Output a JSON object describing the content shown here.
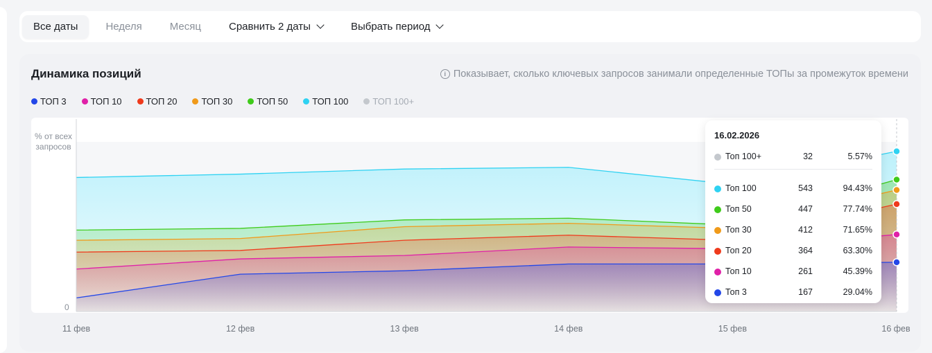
{
  "tabs": [
    {
      "label": "Все даты",
      "active": true
    },
    {
      "label": "Неделя"
    },
    {
      "label": "Месяц"
    },
    {
      "label": "Сравнить 2 даты",
      "dropdown": true
    },
    {
      "label": "Выбрать период",
      "dropdown": true
    }
  ],
  "card": {
    "title": "Динамика позиций",
    "info": "Показывает, сколько ключевых запросов занимали определенные ТОПы за промежуток времени"
  },
  "legend": [
    {
      "label": "ТОП 3",
      "color": "#2347e8"
    },
    {
      "label": "ТОП 10",
      "color": "#e020a8"
    },
    {
      "label": "ТОП 20",
      "color": "#ef3a1c"
    },
    {
      "label": "ТОП 30",
      "color": "#f09a1a"
    },
    {
      "label": "ТОП 50",
      "color": "#3fcb1a"
    },
    {
      "label": "ТОП 100",
      "color": "#2fd2f2"
    },
    {
      "label": "ТОП 100+",
      "color": "#c4c8cd",
      "disabled": true
    }
  ],
  "chart_data": {
    "type": "area",
    "ylabel": "% от всех запросов",
    "ymin_label": "0",
    "ylim": [
      0,
      100
    ],
    "categories": [
      "11 фев",
      "12 фев",
      "13 фев",
      "14 фев",
      "15 фев",
      "16 фев"
    ],
    "series": [
      {
        "name": "ТОП 100",
        "color": "#2fd2f2",
        "values": [
          79,
          81,
          84,
          85,
          75,
          94.43
        ]
      },
      {
        "name": "ТОП 50",
        "color": "#3fcb1a",
        "values": [
          48,
          49,
          54,
          55,
          51,
          77.74
        ]
      },
      {
        "name": "ТОП 30",
        "color": "#f09a1a",
        "values": [
          42,
          43,
          50,
          52,
          49,
          71.65
        ]
      },
      {
        "name": "ТОП 20",
        "color": "#ef3a1c",
        "values": [
          35,
          36,
          42,
          45,
          42,
          63.3
        ]
      },
      {
        "name": "ТОП 10",
        "color": "#e020a8",
        "values": [
          25,
          31,
          33,
          38,
          37,
          45.39
        ]
      },
      {
        "name": "ТОП 3",
        "color": "#2347e8",
        "values": [
          8,
          22,
          24,
          28,
          28,
          29.04
        ]
      }
    ]
  },
  "tooltip": {
    "date": "16.02.2026",
    "rows": [
      {
        "name": "Топ 100+",
        "count": "32",
        "pct": "5.57%",
        "color": "#c4c8cd"
      },
      {
        "name": "Топ 100",
        "count": "543",
        "pct": "94.43%",
        "color": "#2fd2f2"
      },
      {
        "name": "Топ 50",
        "count": "447",
        "pct": "77.74%",
        "color": "#3fcb1a"
      },
      {
        "name": "Топ 30",
        "count": "412",
        "pct": "71.65%",
        "color": "#f09a1a"
      },
      {
        "name": "Топ 20",
        "count": "364",
        "pct": "63.30%",
        "color": "#ef3a1c"
      },
      {
        "name": "Топ 10",
        "count": "261",
        "pct": "45.39%",
        "color": "#e020a8"
      },
      {
        "name": "Топ 3",
        "count": "167",
        "pct": "29.04%",
        "color": "#2347e8"
      }
    ]
  }
}
